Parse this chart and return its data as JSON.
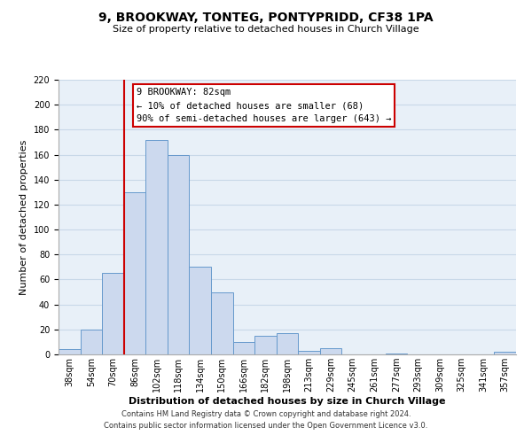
{
  "title": "9, BROOKWAY, TONTEG, PONTYPRIDD, CF38 1PA",
  "subtitle": "Size of property relative to detached houses in Church Village",
  "xlabel": "Distribution of detached houses by size in Church Village",
  "ylabel": "Number of detached properties",
  "bar_labels": [
    "38sqm",
    "54sqm",
    "70sqm",
    "86sqm",
    "102sqm",
    "118sqm",
    "134sqm",
    "150sqm",
    "166sqm",
    "182sqm",
    "198sqm",
    "213sqm",
    "229sqm",
    "245sqm",
    "261sqm",
    "277sqm",
    "293sqm",
    "309sqm",
    "325sqm",
    "341sqm",
    "357sqm"
  ],
  "bar_heights": [
    4,
    20,
    65,
    130,
    172,
    160,
    70,
    50,
    10,
    15,
    17,
    3,
    5,
    0,
    0,
    1,
    0,
    0,
    0,
    0,
    2
  ],
  "bar_color": "#ccd9ee",
  "bar_edge_color": "#6699cc",
  "vline_color": "#cc0000",
  "vline_pos": 2.5,
  "ylim": [
    0,
    220
  ],
  "yticks": [
    0,
    20,
    40,
    60,
    80,
    100,
    120,
    140,
    160,
    180,
    200,
    220
  ],
  "annotation_title": "9 BROOKWAY: 82sqm",
  "annotation_line1": "← 10% of detached houses are smaller (68)",
  "annotation_line2": "90% of semi-detached houses are larger (643) →",
  "annotation_box_facecolor": "#ffffff",
  "annotation_box_edgecolor": "#cc0000",
  "footer1": "Contains HM Land Registry data © Crown copyright and database right 2024.",
  "footer2": "Contains public sector information licensed under the Open Government Licence v3.0.",
  "fig_facecolor": "#ffffff",
  "axes_facecolor": "#e8f0f8",
  "grid_color": "#c8d8e8",
  "title_fontsize": 10,
  "subtitle_fontsize": 8,
  "xlabel_fontsize": 8,
  "ylabel_fontsize": 8,
  "tick_fontsize": 7,
  "annotation_fontsize": 7.5,
  "footer_fontsize": 6
}
